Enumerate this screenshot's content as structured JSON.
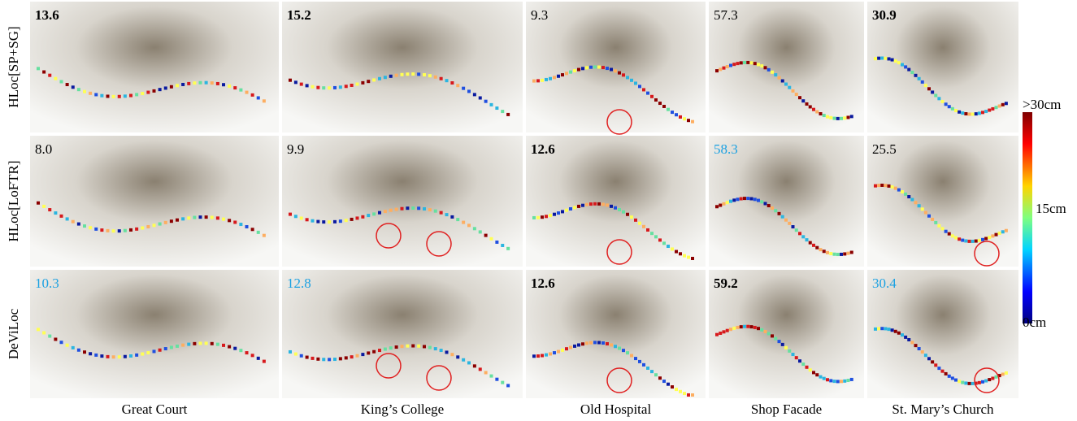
{
  "figure": {
    "rows": [
      "HLoc[SP+SG]",
      "HLoc[LoFTR]",
      "DeViLoc"
    ],
    "columns": [
      "Great Court",
      "King’s College",
      "Old Hospital",
      "Shop Facade",
      "St. Mary’s Church"
    ],
    "cells": [
      [
        {
          "text": "13.6",
          "style": "bold"
        },
        {
          "text": "15.2",
          "style": "bold"
        },
        {
          "text": "9.3",
          "style": "plain"
        },
        {
          "text": "57.3",
          "style": "plain"
        },
        {
          "text": "30.9",
          "style": "bold"
        }
      ],
      [
        {
          "text": "8.0",
          "style": "plain"
        },
        {
          "text": "9.9",
          "style": "plain"
        },
        {
          "text": "12.6",
          "style": "bold"
        },
        {
          "text": "58.3",
          "style": "blue"
        },
        {
          "text": "25.5",
          "style": "plain"
        }
      ],
      [
        {
          "text": "10.3",
          "style": "blue"
        },
        {
          "text": "12.8",
          "style": "blue"
        },
        {
          "text": "12.6",
          "style": "bold"
        },
        {
          "text": "59.2",
          "style": "bold"
        },
        {
          "text": "30.4",
          "style": "blue"
        }
      ]
    ],
    "colorbar": {
      "labels": [
        ">30cm",
        "15cm",
        "0cm"
      ]
    }
  }
}
